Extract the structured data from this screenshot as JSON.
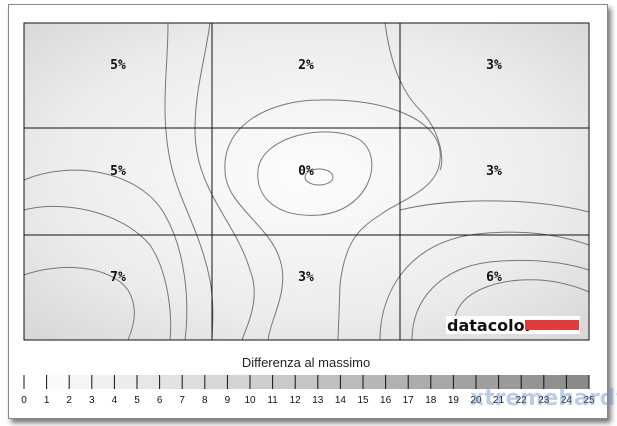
{
  "chart_data": {
    "type": "heatmap",
    "grid": {
      "rows": 3,
      "cols": 3
    },
    "cells": [
      [
        "5%",
        "2%",
        "3%"
      ],
      [
        "5%",
        "0%",
        "3%"
      ],
      [
        "7%",
        "3%",
        "6%"
      ]
    ],
    "values": [
      [
        5,
        2,
        3
      ],
      [
        5,
        0,
        3
      ],
      [
        7,
        3,
        6
      ]
    ],
    "colorbar": {
      "title": "Differenza al massimo",
      "range": [
        0,
        25
      ],
      "ticks": [
        0,
        1,
        2,
        3,
        4,
        5,
        6,
        7,
        8,
        9,
        10,
        11,
        12,
        13,
        14,
        15,
        16,
        17,
        18,
        19,
        20,
        21,
        22,
        23,
        24,
        25
      ],
      "color_low": "#ffffff",
      "color_high": "#8a8a8a"
    }
  },
  "logo": {
    "text": "datacolor",
    "accent": "#e03a3a"
  },
  "watermark": "xtremehardware.com"
}
